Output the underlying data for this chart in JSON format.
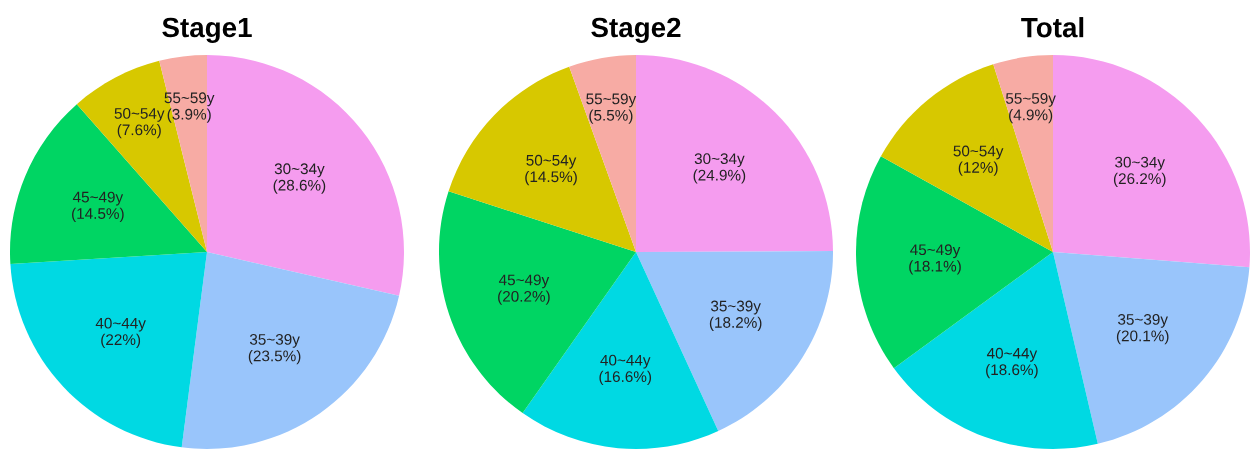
{
  "chart_data": [
    {
      "type": "pie",
      "title": "Stage1",
      "categories": [
        "30~34y",
        "35~39y",
        "40~44y",
        "45~49y",
        "50~54y",
        "55~59y"
      ],
      "values": [
        28.6,
        23.5,
        22,
        14.5,
        7.6,
        3.9
      ],
      "value_labels": [
        "(28.6%)",
        "(23.5%)",
        "(22%)",
        "(14.5%)",
        "(7.6%)",
        "(3.9%)"
      ],
      "colors": [
        "#f59cef",
        "#99c5fb",
        "#00d9e3",
        "#00d563",
        "#d7c800",
        "#f7aba4"
      ],
      "legend": false
    },
    {
      "type": "pie",
      "title": "Stage2",
      "categories": [
        "30~34y",
        "35~39y",
        "40~44y",
        "45~49y",
        "50~54y",
        "55~59y"
      ],
      "values": [
        24.9,
        18.2,
        16.6,
        20.2,
        14.5,
        5.5
      ],
      "value_labels": [
        "(24.9%)",
        "(18.2%)",
        "(16.6%)",
        "(20.2%)",
        "(14.5%)",
        "(5.5%)"
      ],
      "colors": [
        "#f59cef",
        "#99c5fb",
        "#00d9e3",
        "#00d563",
        "#d7c800",
        "#f7aba4"
      ],
      "legend": false
    },
    {
      "type": "pie",
      "title": "Total",
      "categories": [
        "30~34y",
        "35~39y",
        "40~44y",
        "45~49y",
        "50~54y",
        "55~59y"
      ],
      "values": [
        26.2,
        20.1,
        18.6,
        18.1,
        12,
        4.9
      ],
      "value_labels": [
        "(26.2%)",
        "(20.1%)",
        "(18.6%)",
        "(18.1%)",
        "(12%)",
        "(4.9%)"
      ],
      "colors": [
        "#f59cef",
        "#99c5fb",
        "#00d9e3",
        "#00d563",
        "#d7c800",
        "#f7aba4"
      ],
      "legend": false
    }
  ]
}
